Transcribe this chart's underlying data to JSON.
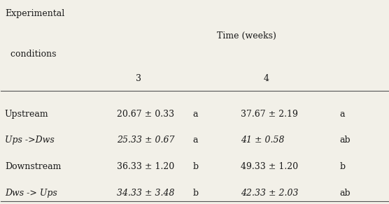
{
  "header_line1": "Experimental",
  "header_line2": "  conditions",
  "time_header": "Time (weeks)",
  "col_headers": [
    "3",
    "4"
  ],
  "rows": [
    {
      "label": "Upstream",
      "italic": false,
      "val1": "20.67 ± 0.33",
      "sig1": "a",
      "val2": "37.67 ± 2.19",
      "sig2": "a"
    },
    {
      "label": "Ups ->Dws",
      "italic": true,
      "val1": "25.33 ± 0.67",
      "sig1": "a",
      "val2": "41 ± 0.58",
      "sig2": "ab"
    },
    {
      "label": "Downstream",
      "italic": false,
      "val1": "36.33 ± 1.20",
      "sig1": "b",
      "val2": "49.33 ± 1.20",
      "sig2": "b"
    },
    {
      "label": "Dws -> Ups",
      "italic": true,
      "val1": "34.33 ± 3.48",
      "sig1": "b",
      "val2": "42.33 ± 2.03",
      "sig2": "ab"
    }
  ],
  "bg_color": "#f2f0e8",
  "text_color": "#1a1a1a",
  "line_color": "#555555",
  "fontsize": 9,
  "fontfamily": "DejaVu Serif"
}
